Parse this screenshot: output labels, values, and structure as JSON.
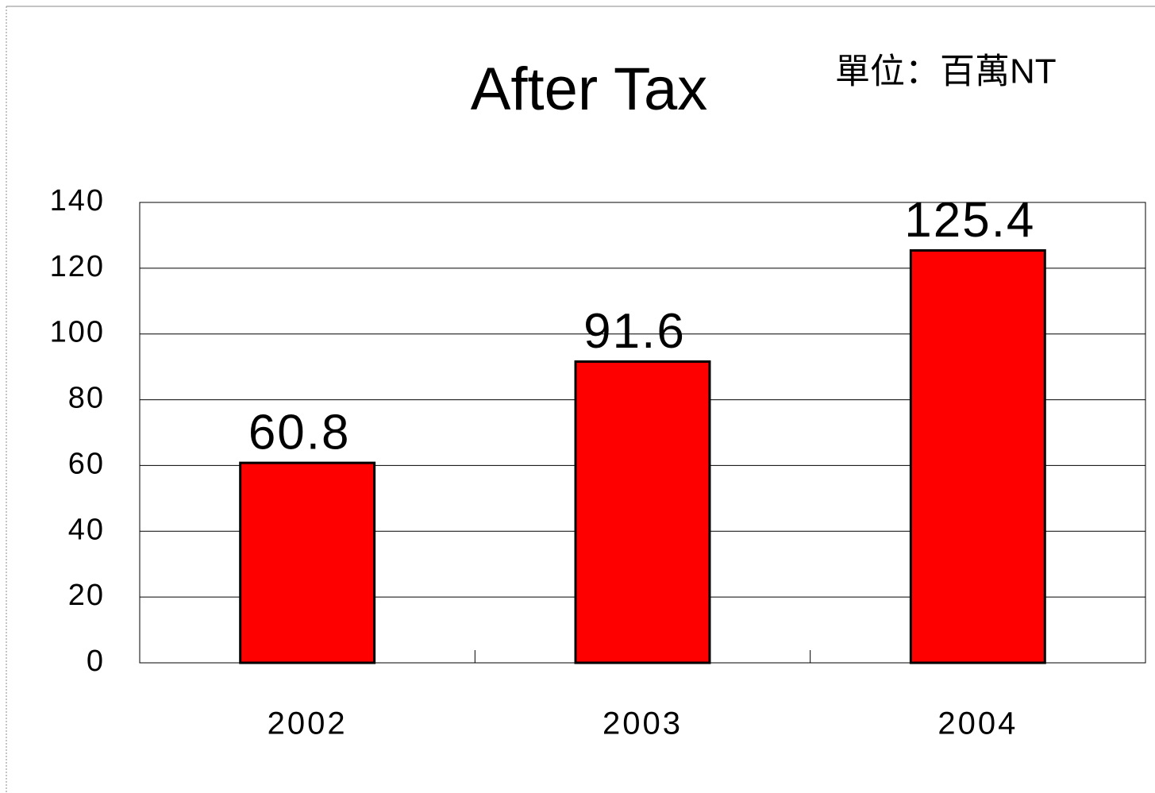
{
  "chart_data": {
    "type": "bar",
    "title": "After Tax",
    "annotation": "單位：百萬NT",
    "categories": [
      "2002",
      "2003",
      "2004"
    ],
    "values": [
      60.8,
      91.6,
      125.4
    ],
    "color": "#ff0000",
    "ylim": [
      0,
      140
    ],
    "yticks": [
      0,
      20,
      40,
      60,
      80,
      100,
      120,
      140
    ],
    "grid": true
  }
}
